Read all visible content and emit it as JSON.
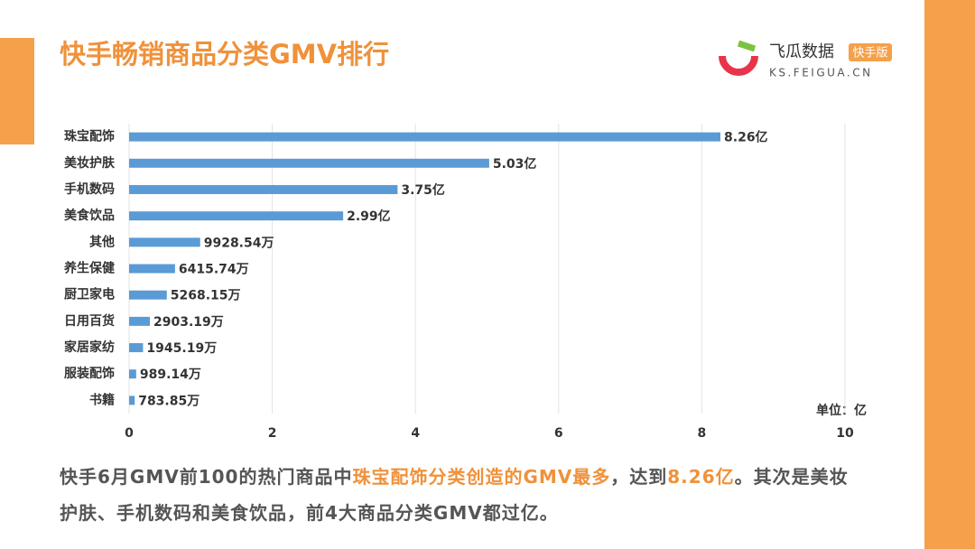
{
  "chart_data": {
    "type": "hbar",
    "title": "快手畅销商品分类GMV排行",
    "categories": [
      "珠宝配饰",
      "美妆护肤",
      "手机数码",
      "美食饮品",
      "其他",
      "养生保健",
      "厨卫家电",
      "日用百货",
      "家居家纺",
      "服装配饰",
      "书籍"
    ],
    "values": [
      8.26,
      5.03,
      3.75,
      2.99,
      0.992854,
      0.641574,
      0.526815,
      0.290319,
      0.194519,
      0.098914,
      0.078385
    ],
    "value_labels": [
      "8.26亿",
      "5.03亿",
      "3.75亿",
      "2.99亿",
      "9928.54万",
      "6415.74万",
      "5268.15万",
      "2903.19万",
      "1945.19万",
      "989.14万",
      "783.85万"
    ],
    "color": "#5b9bd5",
    "xlim": [
      0,
      10
    ],
    "xticks": [
      0,
      2,
      4,
      6,
      8,
      10
    ],
    "grid": true,
    "unit_label": "单位：亿"
  },
  "logo": {
    "name": "飞瓜数据",
    "badge": "快手版",
    "url": "KS.FEIGUA.CN"
  },
  "caption": [
    "快手6月GMV前100的热门商品中",
    "珠宝配饰分类创造的GMV最多",
    "，达到",
    "8.26亿",
    "。其次是美妆护肤、手机数码和美食饮品，前4大商品分类GMV都过亿。"
  ]
}
